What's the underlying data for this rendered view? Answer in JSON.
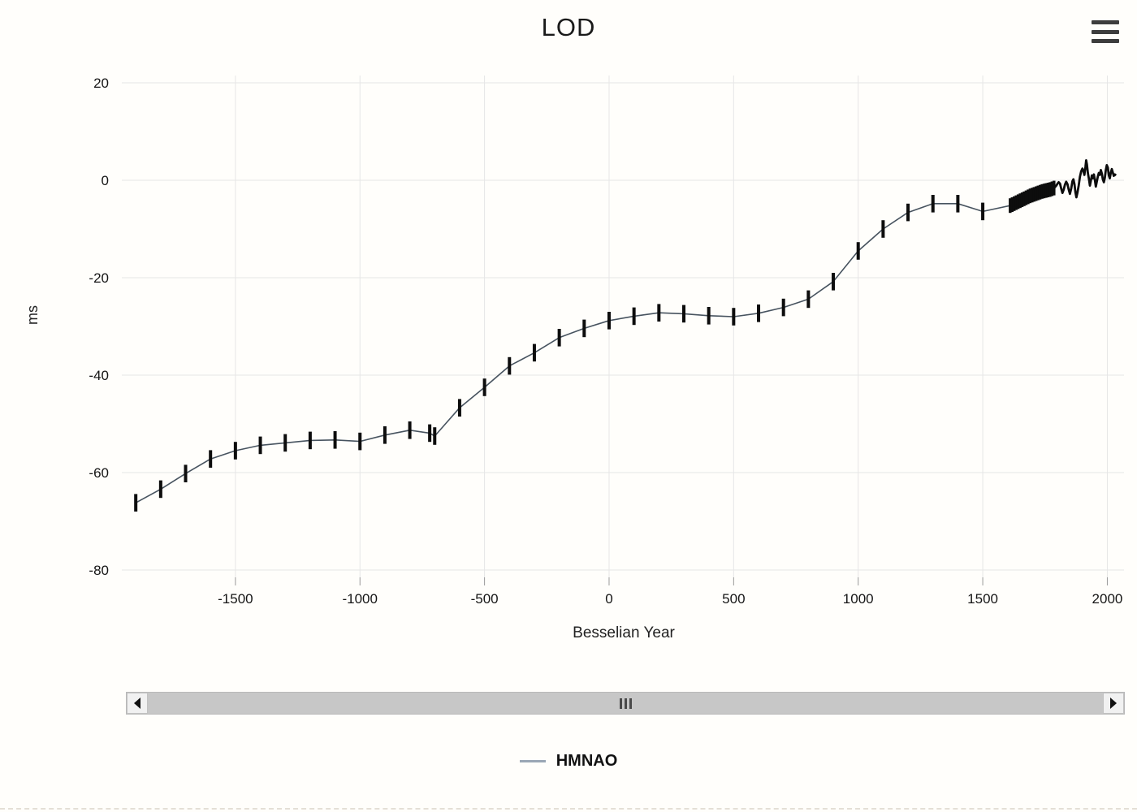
{
  "title": "LOD",
  "icons": {
    "context_menu": "hamburger-icon",
    "scroll_left": "left-arrow-icon",
    "scroll_right": "right-arrow-icon",
    "scroll_grip": "grip-icon"
  },
  "legend": {
    "position": "bottom",
    "items": [
      {
        "label": "HMNAO",
        "swatch_color": "#9aa7b5"
      }
    ]
  },
  "colors": {
    "background": "#fffefb",
    "title_text": "#1a1a1a",
    "grid": "#e6e6e6",
    "tick": "#999999",
    "axis_text": "#151515",
    "line_historic": "#47535f",
    "line_modern": "#0d0d0d",
    "error_bar": "#0d0d0d",
    "scrollbar_track": "#c7c7c7",
    "scrollbar_button": "#f1f1f1"
  },
  "chart_data": {
    "type": "line",
    "title": "LOD",
    "xlabel": "Besselian Year",
    "ylabel": "ms",
    "xlim": [
      -1956,
      2067
    ],
    "ylim": [
      -81.5,
      21.5
    ],
    "x_ticks": [
      -1500,
      -1000,
      -500,
      0,
      500,
      1000,
      1500,
      2000
    ],
    "y_ticks": [
      20,
      0,
      -20,
      -40,
      -60,
      -80
    ],
    "grid": true,
    "legend_position": "bottom",
    "series": [
      {
        "name": "HMNAO",
        "line_color": "#47535f",
        "legend_color": "#9aa7b5",
        "segments": [
          {
            "style": "smooth-thin",
            "error_bar": 1.8,
            "data": [
              [
                -1900,
                -66.2
              ],
              [
                -1800,
                -63.4
              ],
              [
                -1700,
                -60.2
              ],
              [
                -1600,
                -57.2
              ],
              [
                -1500,
                -55.5
              ],
              [
                -1400,
                -54.4
              ],
              [
                -1300,
                -53.9
              ],
              [
                -1200,
                -53.4
              ],
              [
                -1100,
                -53.3
              ],
              [
                -1000,
                -53.6
              ],
              [
                -900,
                -52.3
              ],
              [
                -800,
                -51.3
              ],
              [
                -720,
                -51.9
              ],
              [
                -700,
                -52.5
              ],
              [
                -600,
                -46.7
              ],
              [
                -500,
                -42.5
              ],
              [
                -400,
                -38.1
              ],
              [
                -300,
                -35.4
              ],
              [
                -200,
                -32.3
              ],
              [
                -100,
                -30.4
              ],
              [
                0,
                -28.8
              ],
              [
                100,
                -27.9
              ],
              [
                200,
                -27.2
              ],
              [
                300,
                -27.4
              ],
              [
                400,
                -27.8
              ],
              [
                500,
                -28.0
              ],
              [
                600,
                -27.3
              ],
              [
                700,
                -26.1
              ],
              [
                800,
                -24.4
              ],
              [
                900,
                -20.8
              ],
              [
                1000,
                -14.5
              ],
              [
                1100,
                -10.0
              ],
              [
                1200,
                -6.6
              ],
              [
                1300,
                -4.8
              ],
              [
                1400,
                -4.8
              ],
              [
                1500,
                -6.4
              ]
            ]
          },
          {
            "style": "dense-thin",
            "error_bar": 1.5,
            "data": [
              [
                1610,
                -5.2
              ],
              [
                1618,
                -5.0
              ],
              [
                1626,
                -4.8
              ],
              [
                1634,
                -4.6
              ],
              [
                1642,
                -4.4
              ],
              [
                1650,
                -4.2
              ],
              [
                1658,
                -4.0
              ],
              [
                1666,
                -3.8
              ],
              [
                1674,
                -3.6
              ],
              [
                1682,
                -3.4
              ],
              [
                1690,
                -3.2
              ],
              [
                1698,
                -3.05
              ],
              [
                1706,
                -2.9
              ],
              [
                1714,
                -2.75
              ],
              [
                1722,
                -2.6
              ],
              [
                1730,
                -2.45
              ],
              [
                1738,
                -2.3
              ],
              [
                1746,
                -2.2
              ],
              [
                1754,
                -2.1
              ],
              [
                1762,
                -2.0
              ],
              [
                1770,
                -1.9
              ],
              [
                1778,
                -1.75
              ],
              [
                1786,
                -1.6
              ]
            ]
          },
          {
            "style": "noisy-thick",
            "error_bar": 0,
            "data": [
              [
                1790,
                -1.4
              ],
              [
                1795,
                -1.1
              ],
              [
                1800,
                -0.7
              ],
              [
                1805,
                -0.4
              ],
              [
                1810,
                -0.7
              ],
              [
                1815,
                -1.7
              ],
              [
                1820,
                -2.6
              ],
              [
                1825,
                -1.9
              ],
              [
                1830,
                -0.9
              ],
              [
                1835,
                -0.3
              ],
              [
                1840,
                -0.8
              ],
              [
                1845,
                -1.9
              ],
              [
                1850,
                -2.8
              ],
              [
                1855,
                -1.7
              ],
              [
                1860,
                -0.2
              ],
              [
                1864,
                0.2
              ],
              [
                1868,
                -0.8
              ],
              [
                1872,
                -2.5
              ],
              [
                1876,
                -3.5
              ],
              [
                1880,
                -2.6
              ],
              [
                1885,
                -1.1
              ],
              [
                1890,
                0.7
              ],
              [
                1895,
                1.8
              ],
              [
                1900,
                2.4
              ],
              [
                1904,
                1.9
              ],
              [
                1908,
                1.1
              ],
              [
                1912,
                2.7
              ],
              [
                1915,
                4.1
              ],
              [
                1918,
                3.3
              ],
              [
                1922,
                1.5
              ],
              [
                1926,
                0.3
              ],
              [
                1930,
                -1.1
              ],
              [
                1934,
                -0.1
              ],
              [
                1938,
                1.0
              ],
              [
                1942,
                0.4
              ],
              [
                1946,
                1.2
              ],
              [
                1950,
                0.1
              ],
              [
                1954,
                -1.3
              ],
              [
                1958,
                -0.2
              ],
              [
                1962,
                0.8
              ],
              [
                1966,
                1.5
              ],
              [
                1970,
                1.1
              ],
              [
                1974,
                2.1
              ],
              [
                1978,
                1.4
              ],
              [
                1982,
                0.2
              ],
              [
                1986,
                -0.4
              ],
              [
                1990,
                0.5
              ],
              [
                1994,
                2.1
              ],
              [
                1998,
                3.1
              ],
              [
                2002,
                2.6
              ],
              [
                2006,
                1.0
              ],
              [
                2010,
                0.4
              ],
              [
                2014,
                1.5
              ],
              [
                2018,
                2.3
              ],
              [
                2022,
                1.6
              ],
              [
                2026,
                0.9
              ],
              [
                2030,
                1.2
              ],
              [
                2035,
                1.0
              ]
            ]
          }
        ]
      }
    ]
  }
}
